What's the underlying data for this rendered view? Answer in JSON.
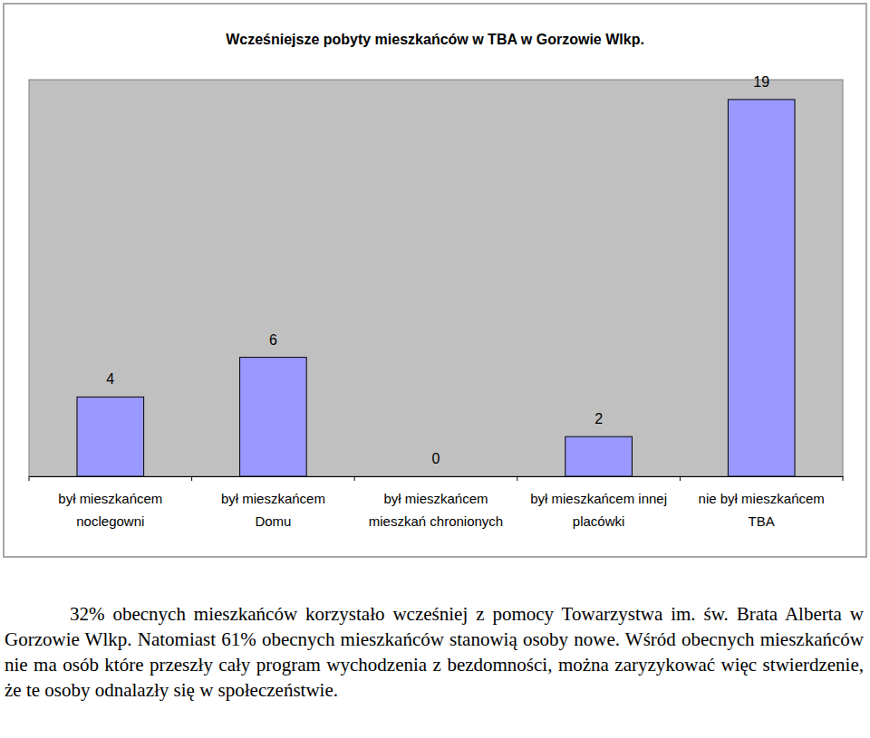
{
  "chart_data": {
    "type": "bar",
    "title": "Wcześniejsze pobyty mieszkańców w TBA w Gorzowie Wlkp.",
    "categories": [
      "był mieszkańcem\nnoclegowni",
      "był mieszkańcem\nDomu",
      "był mieszkańcem\nmieszkań chronionych",
      "był mieszkańcem innej\nplacówki",
      "nie był mieszkańcem\nTBA"
    ],
    "values": [
      4,
      6,
      0,
      2,
      19
    ],
    "color": "#9999ff",
    "ylim": [
      0,
      20
    ],
    "grid": false,
    "data_labels": true,
    "tick_labels": "x"
  },
  "caption": "32% obecnych mieszkańców korzystało wcześniej z pomocy Towarzystwa im. św. Brata Alberta w Gorzowie Wlkp. Natomiast 61% obecnych mieszkańców stanowią osoby nowe. Wśród obecnych mieszkańców nie ma osób które przeszły cały program wychodzenia z bezdomności, można zaryzykować więc stwierdzenie, że te osoby odnalazły się w społeczeństwie."
}
